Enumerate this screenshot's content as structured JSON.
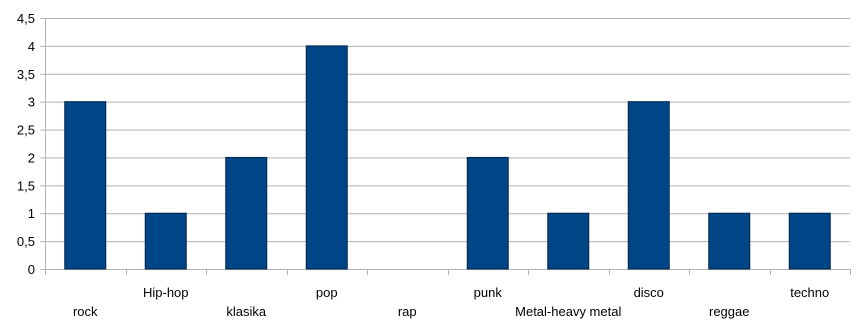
{
  "chart_data": {
    "type": "bar",
    "categories": [
      "rock",
      "Hip-hop",
      "klasika",
      "pop",
      "rap",
      "punk",
      "Metal-heavy metal",
      "disco",
      "reggae",
      "techno"
    ],
    "values": [
      3,
      1,
      2,
      4,
      0,
      2,
      1,
      3,
      1,
      1
    ],
    "ylim": [
      0,
      4.5
    ],
    "yticks": [
      "0",
      "0,5",
      "1",
      "1,5",
      "2",
      "2,5",
      "3",
      "3,5",
      "4",
      "4,5"
    ],
    "grid": true,
    "legend": "none",
    "bar_color": "#004586",
    "grid_color": "#b3b3b3"
  }
}
